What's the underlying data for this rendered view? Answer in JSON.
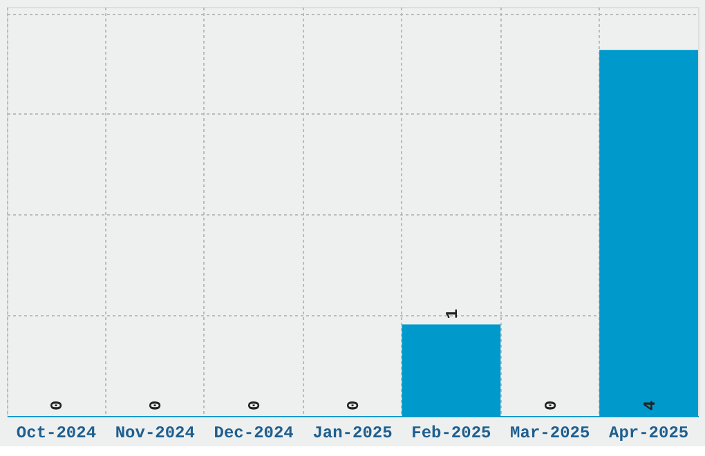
{
  "chart_data": {
    "type": "bar",
    "categories": [
      "Oct-2024",
      "Nov-2024",
      "Dec-2024",
      "Jan-2025",
      "Feb-2025",
      "Mar-2025",
      "Apr-2025"
    ],
    "values": [
      0,
      0,
      0,
      0,
      1,
      0,
      4
    ],
    "color": "#0099cc",
    "ylim": [
      0,
      4.47
    ],
    "yticks": [
      {
        "value": 1.1,
        "label": null
      },
      {
        "value": 2.2,
        "label": null
      },
      {
        "value": 3.3,
        "label": null
      },
      {
        "value": 4.4,
        "label": null
      }
    ],
    "tick_labels": "x",
    "grid": true,
    "data_labels": true
  }
}
